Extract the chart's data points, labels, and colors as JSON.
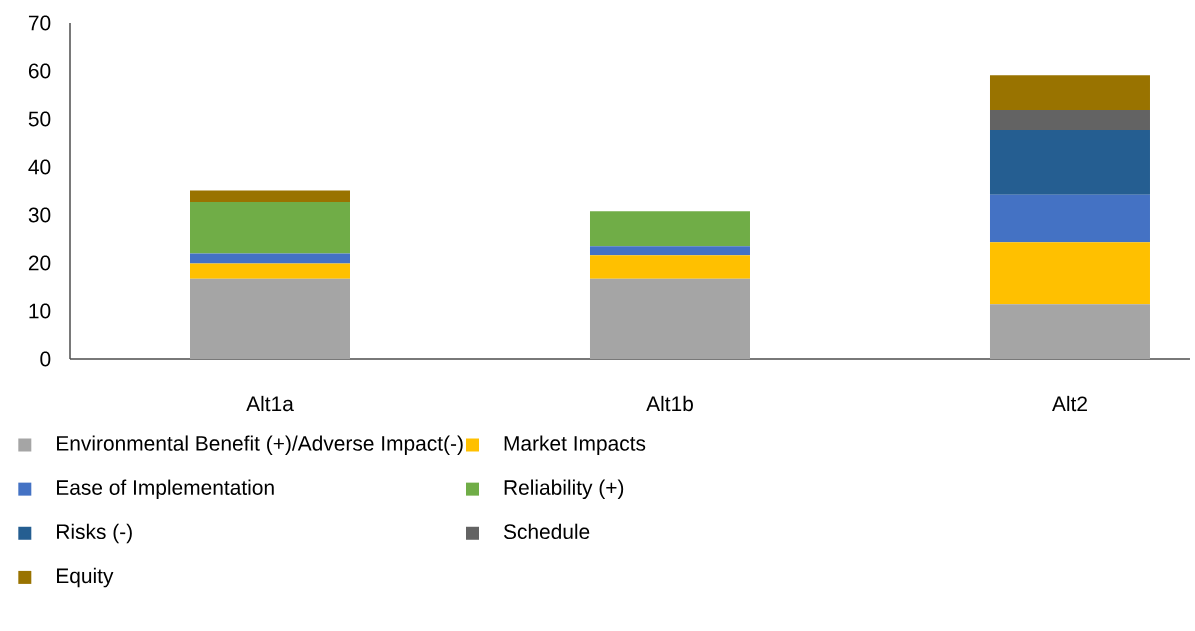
{
  "chart_data": {
    "type": "bar",
    "stacked": true,
    "categories": [
      "Alt1a",
      "Alt1b",
      "Alt2"
    ],
    "ylim": [
      0,
      70
    ],
    "yticks": [
      0,
      10,
      20,
      30,
      40,
      50,
      60,
      70
    ],
    "legend": "bottom",
    "series": [
      {
        "name": "Environmental Benefit (+)/Adverse Impact(-)",
        "color": "#a5a5a5",
        "values": [
          16.7,
          16.7,
          11.4
        ]
      },
      {
        "name": "Market Impacts",
        "color": "#ffc000",
        "values": [
          3.2,
          4.9,
          12.9
        ]
      },
      {
        "name": "Ease of Implementation",
        "color": "#4472c4",
        "values": [
          2.1,
          1.9,
          9.9
        ]
      },
      {
        "name": "Reliability (+)",
        "color": "#70ad47",
        "values": [
          10.7,
          7.3,
          0
        ]
      },
      {
        "name": "Risks (-)",
        "color": "#255e91",
        "values": [
          0,
          0,
          13.5
        ]
      },
      {
        "name": "Schedule",
        "color": "#636363",
        "values": [
          0,
          0,
          4.2
        ]
      },
      {
        "name": "Equity",
        "color": "#997300",
        "values": [
          2.4,
          0,
          7.2
        ]
      }
    ]
  }
}
